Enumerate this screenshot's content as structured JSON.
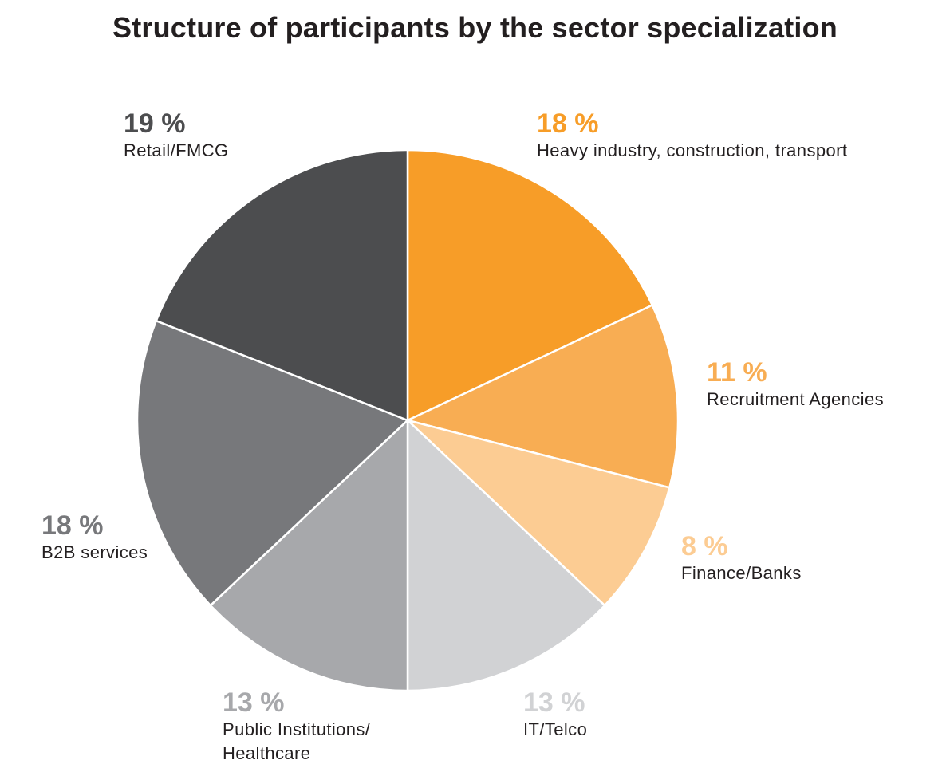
{
  "chart_data": {
    "type": "pie",
    "title": "Structure of participants by the sector specialization",
    "start_angle_deg": 0,
    "direction": "clockwise",
    "slices": [
      {
        "label": "Retail/FMCG",
        "value": 19,
        "display": "19 %",
        "color": "#4c4d4f",
        "label_color": "#4c4d4f"
      },
      {
        "label": "Heavy industry, construction, transport",
        "value": 18,
        "display": "18 %",
        "color": "#f79d28",
        "label_color": "#f79d28"
      },
      {
        "label": "Recruitment Agencies",
        "value": 11,
        "display": "11 %",
        "color": "#f8ad53",
        "label_color": "#f8ad53"
      },
      {
        "label": "Finance/Banks",
        "value": 8,
        "display": "8 %",
        "color": "#fccc93",
        "label_color": "#fccc93"
      },
      {
        "label": "IT/Telco",
        "value": 13,
        "display": "13 %",
        "color": "#d1d2d4",
        "label_color": "#d1d2d4"
      },
      {
        "label": "Public Institutions/\nHealthcare",
        "value": 13,
        "display": "13 %",
        "color": "#a7a8ab",
        "label_color": "#a7a8ab"
      },
      {
        "label": "B2B services",
        "value": 18,
        "display": "18 %",
        "color": "#77787b",
        "label_color": "#77787b"
      }
    ],
    "order_note": "slices listed starting with Retail/FMCG? drawing order handled in script"
  }
}
